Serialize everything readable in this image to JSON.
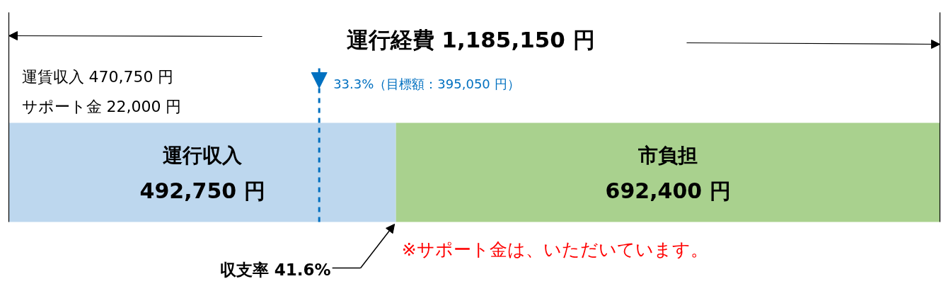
{
  "chart_data": {
    "type": "bar",
    "orientation": "horizontal",
    "stacked": true,
    "title": "運行経費  1,185,150 円",
    "categories": [
      null
    ],
    "series": [
      {
        "name": "運行収入",
        "color": "#bdd7ee",
        "values": [
          492750
        ],
        "value_labels": [
          "492,750 円"
        ]
      },
      {
        "name": "市負担",
        "color": "#a9d18e",
        "values": [
          692400
        ],
        "value_labels": [
          "692,400 円"
        ]
      }
    ],
    "ref_lines": [
      {
        "axis": "x",
        "value": 395050,
        "label": "33.3%（目標額：395,050 円）",
        "color": "#0070c0",
        "line_style": "dashed"
      }
    ],
    "annotations": [
      "運賃収入 470,750 円",
      "サポート金 22,000 円",
      "収支率 41.6%",
      "※サポート金は、いただいています。"
    ]
  }
}
